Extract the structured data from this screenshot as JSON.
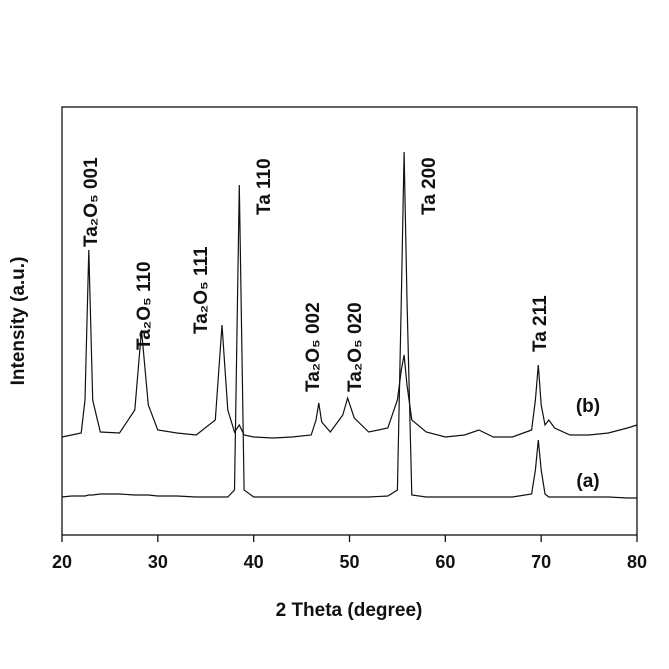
{
  "chart_data": {
    "type": "line",
    "xlabel": "2 Theta (degree)",
    "ylabel": "Intensity (a.u.)",
    "x": [
      20,
      21,
      22,
      22.4,
      22.8,
      23.2,
      24,
      26,
      27.6,
      28.3,
      29,
      30,
      32,
      34,
      36,
      36.7,
      37.3,
      38,
      38.5,
      39,
      40,
      42,
      44,
      46,
      46.5,
      46.8,
      47.1,
      48,
      49.3,
      49.8,
      50.5,
      52,
      54,
      55,
      55.4,
      55.7,
      56,
      56.5,
      58,
      60,
      62,
      63.5,
      65,
      67,
      69,
      69.4,
      69.7,
      70,
      70.4,
      70.8,
      71.4,
      73,
      75,
      77,
      79,
      80
    ],
    "series": [
      {
        "name": "(b)",
        "color": "#111111",
        "values": [
          98,
          100,
          102,
          135,
          285,
          135,
          103,
          102,
          125,
          205,
          130,
          105,
          102,
          100,
          115,
          210,
          125,
          103,
          110,
          100,
          98,
          97,
          98,
          100,
          115,
          132,
          113,
          103,
          120,
          137,
          117,
          103,
          107,
          135,
          165,
          180,
          150,
          115,
          103,
          98,
          100,
          105,
          98,
          98,
          105,
          135,
          170,
          130,
          110,
          115,
          107,
          100,
          100,
          102,
          107,
          110
        ]
      },
      {
        "name": "(a)",
        "color": "#111111",
        "values": [
          38,
          39,
          39,
          39,
          40,
          40,
          41,
          41,
          40,
          40,
          40,
          39,
          39,
          38,
          38,
          38,
          38,
          45,
          350,
          45,
          38,
          38,
          38,
          38,
          38,
          38,
          38,
          38,
          38,
          38,
          38,
          38,
          39,
          45,
          235,
          383,
          235,
          40,
          38,
          38,
          38,
          38,
          38,
          38,
          41,
          65,
          95,
          65,
          41,
          38,
          38,
          38,
          38,
          38,
          37,
          37
        ]
      }
    ],
    "annotations": [
      "Ta₂O₅ 001",
      "Ta₂O₅ 110",
      "Ta₂O₅ 111",
      "Ta 110",
      "Ta₂O₅ 002",
      "Ta₂O₅ 020",
      "Ta 200",
      "Ta 211"
    ],
    "xlim": [
      20,
      80
    ],
    "xticks": [
      20,
      30,
      40,
      50,
      60,
      70,
      80
    ],
    "ylim": [
      0,
      428
    ]
  }
}
